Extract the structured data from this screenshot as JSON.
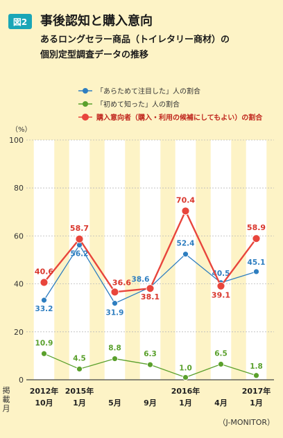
{
  "figure": {
    "badge": "図2",
    "title": "事後認知と購入意向",
    "subtitle_line1": "あるロングセラー商品（トイレタリー商材）の",
    "subtitle_line2": "個別定型調査データの推移",
    "source": "（J-MONITOR）"
  },
  "chart_data": {
    "type": "line",
    "ylabel": "（%）",
    "xlabel": "掲載月",
    "ylim": [
      0,
      100
    ],
    "yticks": [
      0,
      20,
      40,
      60,
      80,
      100
    ],
    "legend_position": "top",
    "categories": [
      {
        "line1": "2012年",
        "line2": "10月"
      },
      {
        "line1": "2015年",
        "line2": "1月"
      },
      {
        "line1": "",
        "line2": "5月"
      },
      {
        "line1": "",
        "line2": "9月"
      },
      {
        "line1": "2016年",
        "line2": "1月"
      },
      {
        "line1": "",
        "line2": "4月"
      },
      {
        "line1": "2017年",
        "line2": "1月"
      }
    ],
    "series": [
      {
        "name": "「あらためて注目した」人の割合",
        "color": "#2e7ec0",
        "bold_label": false,
        "values": [
          33.2,
          56.2,
          31.9,
          38.6,
          52.4,
          40.5,
          45.1
        ],
        "labels": [
          "33.2",
          "56.2",
          "31.9",
          "38.6",
          "52.4",
          "40.5",
          "45.1"
        ]
      },
      {
        "name": "「初めて知った」人の割合",
        "color": "#5aa02c",
        "bold_label": false,
        "values": [
          10.9,
          4.5,
          8.8,
          6.3,
          1.0,
          6.5,
          1.8
        ],
        "labels": [
          "10.9",
          "4.5",
          "8.8",
          "6.3",
          "1.0",
          "6.5",
          "1.8"
        ]
      },
      {
        "name": "購入意向者（購入・利用の候補にしてもよい）の割合",
        "color": "#e8453c",
        "bold_label": true,
        "values": [
          40.6,
          58.7,
          36.6,
          38.1,
          70.4,
          39.1,
          58.9
        ],
        "labels": [
          "40.6",
          "58.7",
          "36.6",
          "38.1",
          "70.4",
          "39.1",
          "58.9"
        ]
      }
    ],
    "background_stripes": true
  }
}
